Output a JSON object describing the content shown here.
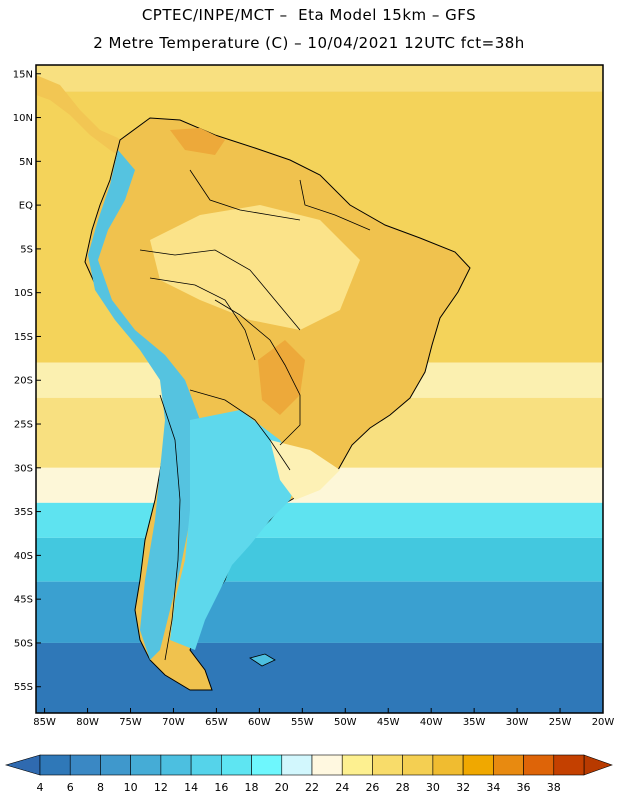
{
  "header": {
    "line1": "CPTEC/INPE/MCT –  Eta Model 15km – GFS",
    "line2": "2 Metre Temperature (C) – 10/04/2021 12UTC fct=38h"
  },
  "map": {
    "lon_range": [
      -86,
      -20
    ],
    "lat_range": [
      -58,
      16
    ],
    "lat_ticks": [
      {
        "value": 15,
        "label": "15N"
      },
      {
        "value": 10,
        "label": "10N"
      },
      {
        "value": 5,
        "label": "5N"
      },
      {
        "value": 0,
        "label": "EQ"
      },
      {
        "value": -5,
        "label": "5S"
      },
      {
        "value": -10,
        "label": "10S"
      },
      {
        "value": -15,
        "label": "15S"
      },
      {
        "value": -20,
        "label": "20S"
      },
      {
        "value": -25,
        "label": "25S"
      },
      {
        "value": -30,
        "label": "30S"
      },
      {
        "value": -35,
        "label": "35S"
      },
      {
        "value": -40,
        "label": "40S"
      },
      {
        "value": -45,
        "label": "45S"
      },
      {
        "value": -50,
        "label": "50S"
      },
      {
        "value": -55,
        "label": "55S"
      }
    ],
    "lon_ticks": [
      {
        "value": -85,
        "label": "85W"
      },
      {
        "value": -80,
        "label": "80W"
      },
      {
        "value": -75,
        "label": "75W"
      },
      {
        "value": -70,
        "label": "70W"
      },
      {
        "value": -65,
        "label": "65W"
      },
      {
        "value": -60,
        "label": "60W"
      },
      {
        "value": -55,
        "label": "55W"
      },
      {
        "value": -50,
        "label": "50W"
      },
      {
        "value": -45,
        "label": "45W"
      },
      {
        "value": -40,
        "label": "40W"
      },
      {
        "value": -35,
        "label": "35W"
      },
      {
        "value": -30,
        "label": "30W"
      },
      {
        "value": -25,
        "label": "25W"
      },
      {
        "value": -20,
        "label": "20W"
      }
    ],
    "ocean_bands": [
      {
        "lat_top": 16,
        "lat_bottom": 13,
        "color": "#f8e080"
      },
      {
        "lat_top": 13,
        "lat_bottom": -18,
        "color": "#f4d35a"
      },
      {
        "lat_top": -18,
        "lat_bottom": -22,
        "color": "#fbf0b0"
      },
      {
        "lat_top": -22,
        "lat_bottom": -30,
        "color": "#f8e080"
      },
      {
        "lat_top": -30,
        "lat_bottom": -34,
        "color": "#fdf7d8"
      },
      {
        "lat_top": -34,
        "lat_bottom": -38,
        "color": "#5ee3f0"
      },
      {
        "lat_top": -38,
        "lat_bottom": -43,
        "color": "#43c8df"
      },
      {
        "lat_top": -43,
        "lat_bottom": -50,
        "color": "#3aa0d0"
      },
      {
        "lat_top": -50,
        "lat_bottom": -58,
        "color": "#2f78b8"
      }
    ]
  },
  "colorbar": {
    "labels": [
      "4",
      "6",
      "8",
      "10",
      "12",
      "14",
      "16",
      "18",
      "20",
      "22",
      "24",
      "26",
      "28",
      "30",
      "32",
      "34",
      "36",
      "38"
    ],
    "colors": [
      "#2f78b8",
      "#3a88c4",
      "#3f98cc",
      "#45acd6",
      "#4cbfe0",
      "#55d3ea",
      "#5ee5f2",
      "#6ef7fd",
      "#d2f7fd",
      "#fff8e0",
      "#fdf090",
      "#f8dc6a",
      "#f4cf52",
      "#f0bc30",
      "#f0a800",
      "#e88a10",
      "#de6408",
      "#c44000"
    ],
    "end_low": "#2f6ab0",
    "end_high": "#b83a00"
  }
}
